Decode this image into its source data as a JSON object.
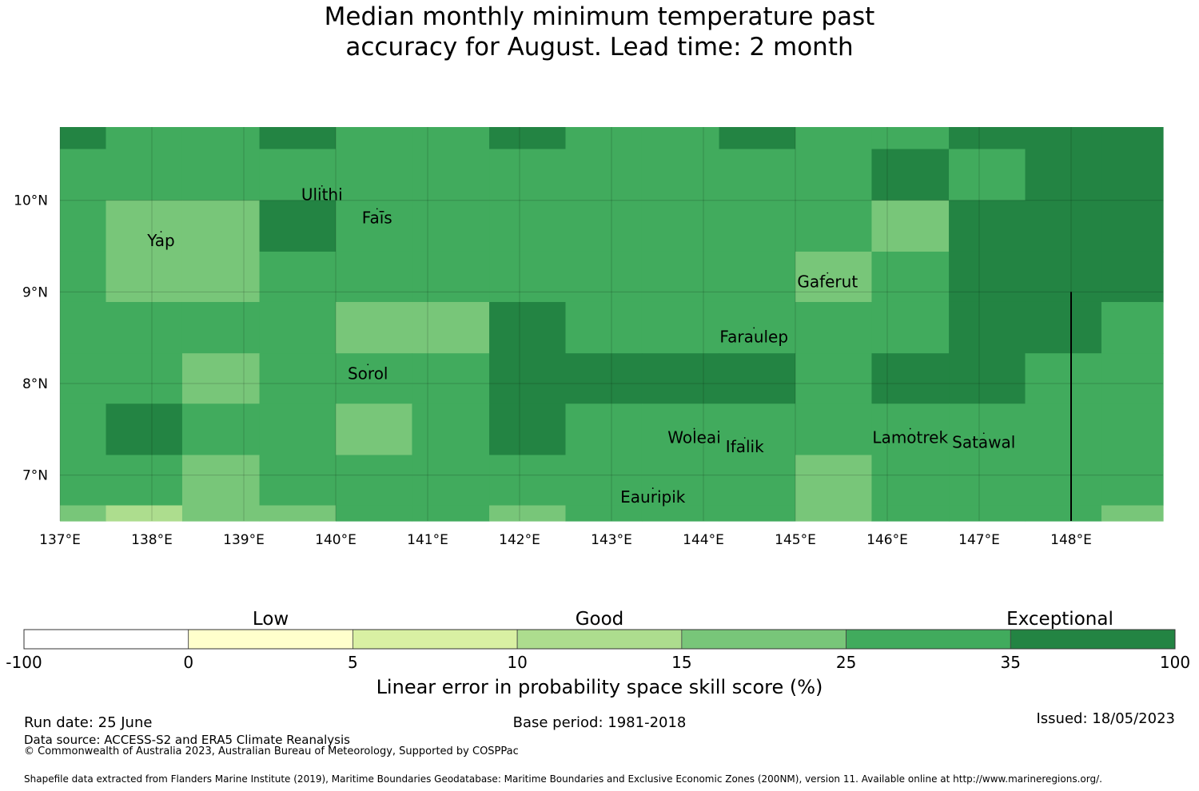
{
  "title": {
    "line1": "Median monthly minimum temperature past",
    "line2": "accuracy for August. Lead time: 2 month"
  },
  "map": {
    "lon_min": 137,
    "lon_max": 149,
    "lat_min": 6.5,
    "lat_max": 10.8,
    "x_ticks": [
      {
        "lon": 137,
        "label": "137°E"
      },
      {
        "lon": 138,
        "label": "138°E"
      },
      {
        "lon": 139,
        "label": "139°E"
      },
      {
        "lon": 140,
        "label": "140°E"
      },
      {
        "lon": 141,
        "label": "141°E"
      },
      {
        "lon": 142,
        "label": "142°E"
      },
      {
        "lon": 143,
        "label": "143°E"
      },
      {
        "lon": 144,
        "label": "144°E"
      },
      {
        "lon": 145,
        "label": "145°E"
      },
      {
        "lon": 146,
        "label": "146°E"
      },
      {
        "lon": 147,
        "label": "147°E"
      },
      {
        "lon": 148,
        "label": "148°E"
      }
    ],
    "y_ticks": [
      {
        "lat": 10,
        "label": "10°N"
      },
      {
        "lat": 9,
        "label": "9°N"
      },
      {
        "lat": 8,
        "label": "8°N"
      },
      {
        "lat": 7,
        "label": "7°N"
      }
    ],
    "col_edges": [
      137,
      137.5,
      138.33,
      139.17,
      140,
      140.83,
      141.67,
      142.5,
      143.33,
      144.17,
      145,
      145.83,
      146.67,
      147.5,
      148.33,
      149
    ],
    "row_edges": [
      10.8,
      10.56,
      10.0,
      9.44,
      8.89,
      8.33,
      7.78,
      7.22,
      6.67,
      6.5
    ],
    "palette": [
      "#ffffff",
      "#ffffcc",
      "#d9f0a3",
      "#addd8e",
      "#78c679",
      "#41ab5d",
      "#238443"
    ],
    "grid": [
      [
        6,
        5,
        5,
        6,
        5,
        5,
        6,
        5,
        5,
        6,
        5,
        5,
        6,
        6,
        6
      ],
      [
        5,
        5,
        5,
        5,
        5,
        5,
        5,
        5,
        5,
        5,
        5,
        6,
        5,
        6,
        6
      ],
      [
        5,
        4,
        4,
        6,
        5,
        5,
        5,
        5,
        5,
        5,
        5,
        4,
        6,
        6,
        6
      ],
      [
        5,
        4,
        4,
        5,
        5,
        5,
        5,
        5,
        5,
        5,
        4,
        5,
        6,
        6,
        6
      ],
      [
        5,
        5,
        5,
        5,
        4,
        4,
        6,
        5,
        5,
        5,
        5,
        5,
        6,
        6,
        5
      ],
      [
        5,
        5,
        4,
        5,
        5,
        5,
        6,
        6,
        6,
        6,
        5,
        6,
        6,
        5,
        5
      ],
      [
        5,
        6,
        5,
        5,
        4,
        5,
        6,
        5,
        5,
        5,
        5,
        5,
        5,
        5,
        5
      ],
      [
        5,
        5,
        4,
        5,
        5,
        5,
        5,
        5,
        5,
        5,
        4,
        5,
        5,
        5,
        5
      ],
      [
        4,
        3,
        4,
        4,
        5,
        5,
        4,
        5,
        5,
        5,
        4,
        5,
        5,
        5,
        4
      ]
    ],
    "places": [
      {
        "name": "Ulithi",
        "lon": 139.85,
        "lat": 10.0
      },
      {
        "name": "Faīs",
        "lon": 140.45,
        "lat": 9.75
      },
      {
        "name": "Yap",
        "lon": 138.1,
        "lat": 9.5
      },
      {
        "name": "Gaferut",
        "lon": 145.35,
        "lat": 9.05
      },
      {
        "name": "Faraulep",
        "lon": 144.55,
        "lat": 8.45
      },
      {
        "name": "Sorol",
        "lon": 140.35,
        "lat": 8.05
      },
      {
        "name": "Woleai",
        "lon": 143.9,
        "lat": 7.35
      },
      {
        "name": "Ifalik",
        "lon": 144.45,
        "lat": 7.25
      },
      {
        "name": "Lamotrek",
        "lon": 146.25,
        "lat": 7.35
      },
      {
        "name": "Satawal",
        "lon": 147.05,
        "lat": 7.3
      },
      {
        "name": "Eauripik",
        "lon": 143.45,
        "lat": 6.7
      }
    ],
    "boundary_line": {
      "lon": 148.0,
      "lat_from": 9.0,
      "lat_to": 6.5
    }
  },
  "colorbar": {
    "category_labels": [
      {
        "label": "Low",
        "at": 1.5
      },
      {
        "label": "Good",
        "at": 3.5
      },
      {
        "label": "Exceptional",
        "at": 6.3
      }
    ],
    "boundaries": [
      "-100",
      "0",
      "5",
      "10",
      "15",
      "25",
      "35",
      "100"
    ],
    "xlabel": "Linear error in probability space skill score (%)"
  },
  "footer": {
    "run_date": "Run date: 25 June",
    "base_period": "Base period: 1981-2018",
    "issued": "Issued: 18/05/2023",
    "data_source": "Data source: ACCESS-S2 and ERA5 Climate Reanalysis",
    "copyright": "© Commonwealth of Australia 2023, Australian Bureau of Meteorology, Supported by COSPPac",
    "shapefile": "Shapefile data extracted from Flanders Marine Institute (2019), Maritime Boundaries Geodatabase: Maritime Boundaries and Exclusive Economic Zones (200NM), version 11. Available online at http://www.marineregions.org/."
  }
}
